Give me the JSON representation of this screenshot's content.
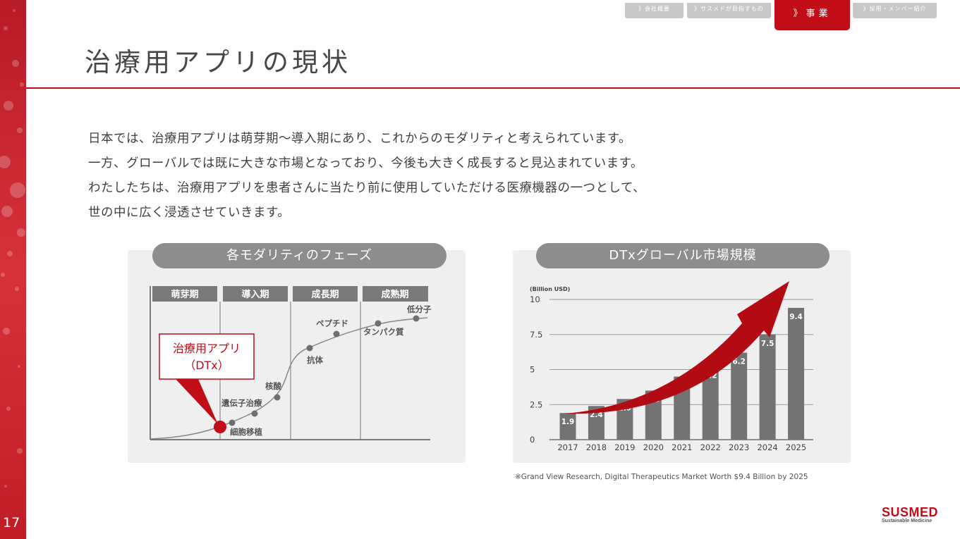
{
  "page": {
    "number": "17",
    "title": "治療用アプリの現状",
    "accent": "#c00d17"
  },
  "nav": {
    "tabs": [
      {
        "label": "》会社概要",
        "active": false
      },
      {
        "label": "》サスメドが目指すもの",
        "active": false
      },
      {
        "label": "》事業",
        "active": true
      },
      {
        "label": "》採用・メンバー紹介",
        "active": false
      }
    ]
  },
  "intro": {
    "lines": [
      "日本では、治療用アプリは萌芽期〜導入期にあり、これからのモダリティと考えられています。",
      "一方、グローバルでは既に大きな市場となっており、今後も大きく成長すると見込まれています。",
      "わたしたちは、治療用アプリを患者さんに当たり前に使用していただける医療機器の一つとして、",
      "世の中に広く浸透させていきます。"
    ]
  },
  "phase_panel": {
    "title": "各モダリティのフェーズ",
    "phases": [
      "萌芽期",
      "導入期",
      "成長期",
      "成熟期"
    ],
    "callout": {
      "line1": "治療用アプリ",
      "line2": "（DTx）"
    },
    "points": [
      {
        "label": "細胞移植"
      },
      {
        "label": "遺伝子治療"
      },
      {
        "label": "核酸"
      },
      {
        "label": "抗体"
      },
      {
        "label": "ペプチド"
      },
      {
        "label": "タンパク質"
      },
      {
        "label": "低分子"
      }
    ]
  },
  "market_panel": {
    "title": "DTxグローバル市場規模"
  },
  "chart_data": {
    "type": "bar",
    "ylabel": "(Billion USD)",
    "categories": [
      "2017",
      "2018",
      "2019",
      "2020",
      "2021",
      "2022",
      "2023",
      "2024",
      "2025"
    ],
    "values": [
      1.9,
      2.4,
      2.9,
      3.5,
      4.5,
      5.2,
      6.2,
      7.5,
      9.4
    ],
    "data_labels": [
      "1.9",
      "2.4",
      "2.9",
      "3.5",
      "4.5",
      "5.2",
      "6.2",
      "7.5",
      "9.4"
    ],
    "ylim": [
      0,
      10
    ],
    "yticks": [
      0,
      2.5,
      5,
      7.5,
      10
    ],
    "ytick_labels": [
      "0",
      "2.5",
      "5",
      "7.5",
      "10"
    ],
    "grid": true,
    "bar_color": "#737373",
    "arrow_color": "#b30b14"
  },
  "footnote": "※Grand View Research, Digital Therapeutics Market Worth $9.4 Billion by 2025",
  "logo": {
    "name": "SUSMED",
    "tagline": "Sustainable Medicine"
  }
}
